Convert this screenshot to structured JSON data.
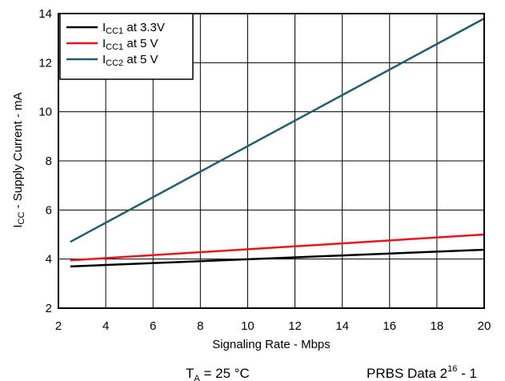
{
  "chart_data": {
    "type": "line",
    "xlabel": "Signaling Rate - Mbps",
    "ylabel": {
      "prefix": "I",
      "sub": "CC",
      "rest": " - Supply Current - mA"
    },
    "xlim": [
      2,
      20
    ],
    "ylim": [
      2,
      14
    ],
    "x_ticks": [
      2,
      4,
      6,
      8,
      10,
      12,
      14,
      16,
      18,
      20
    ],
    "y_ticks": [
      2,
      4,
      6,
      8,
      10,
      12,
      14
    ],
    "grid": true,
    "legend_position": "top-left",
    "series": [
      {
        "name": {
          "prefix": "I",
          "sub": "CC1",
          "rest": " at 3.3V"
        },
        "color": "#000000",
        "x": [
          2.5,
          20
        ],
        "y": [
          3.7,
          4.38
        ]
      },
      {
        "name": {
          "prefix": "I",
          "sub": "CC1",
          "rest": " at 5 V"
        },
        "color": "#e8141c",
        "x": [
          2.5,
          20
        ],
        "y": [
          3.95,
          5.0
        ]
      },
      {
        "name": {
          "prefix": "I",
          "sub": "CC2",
          "rest": " at 5 V"
        },
        "color": "#1f5e6e",
        "x": [
          2.5,
          20
        ],
        "y": [
          4.7,
          13.8
        ]
      }
    ]
  },
  "notes": {
    "ta": {
      "prefix": "T",
      "sub": "A",
      "rest": " = 25 °C"
    },
    "prbs": {
      "prefix": "PRBS Data 2",
      "sup": "16",
      "rest": " - 1"
    }
  }
}
